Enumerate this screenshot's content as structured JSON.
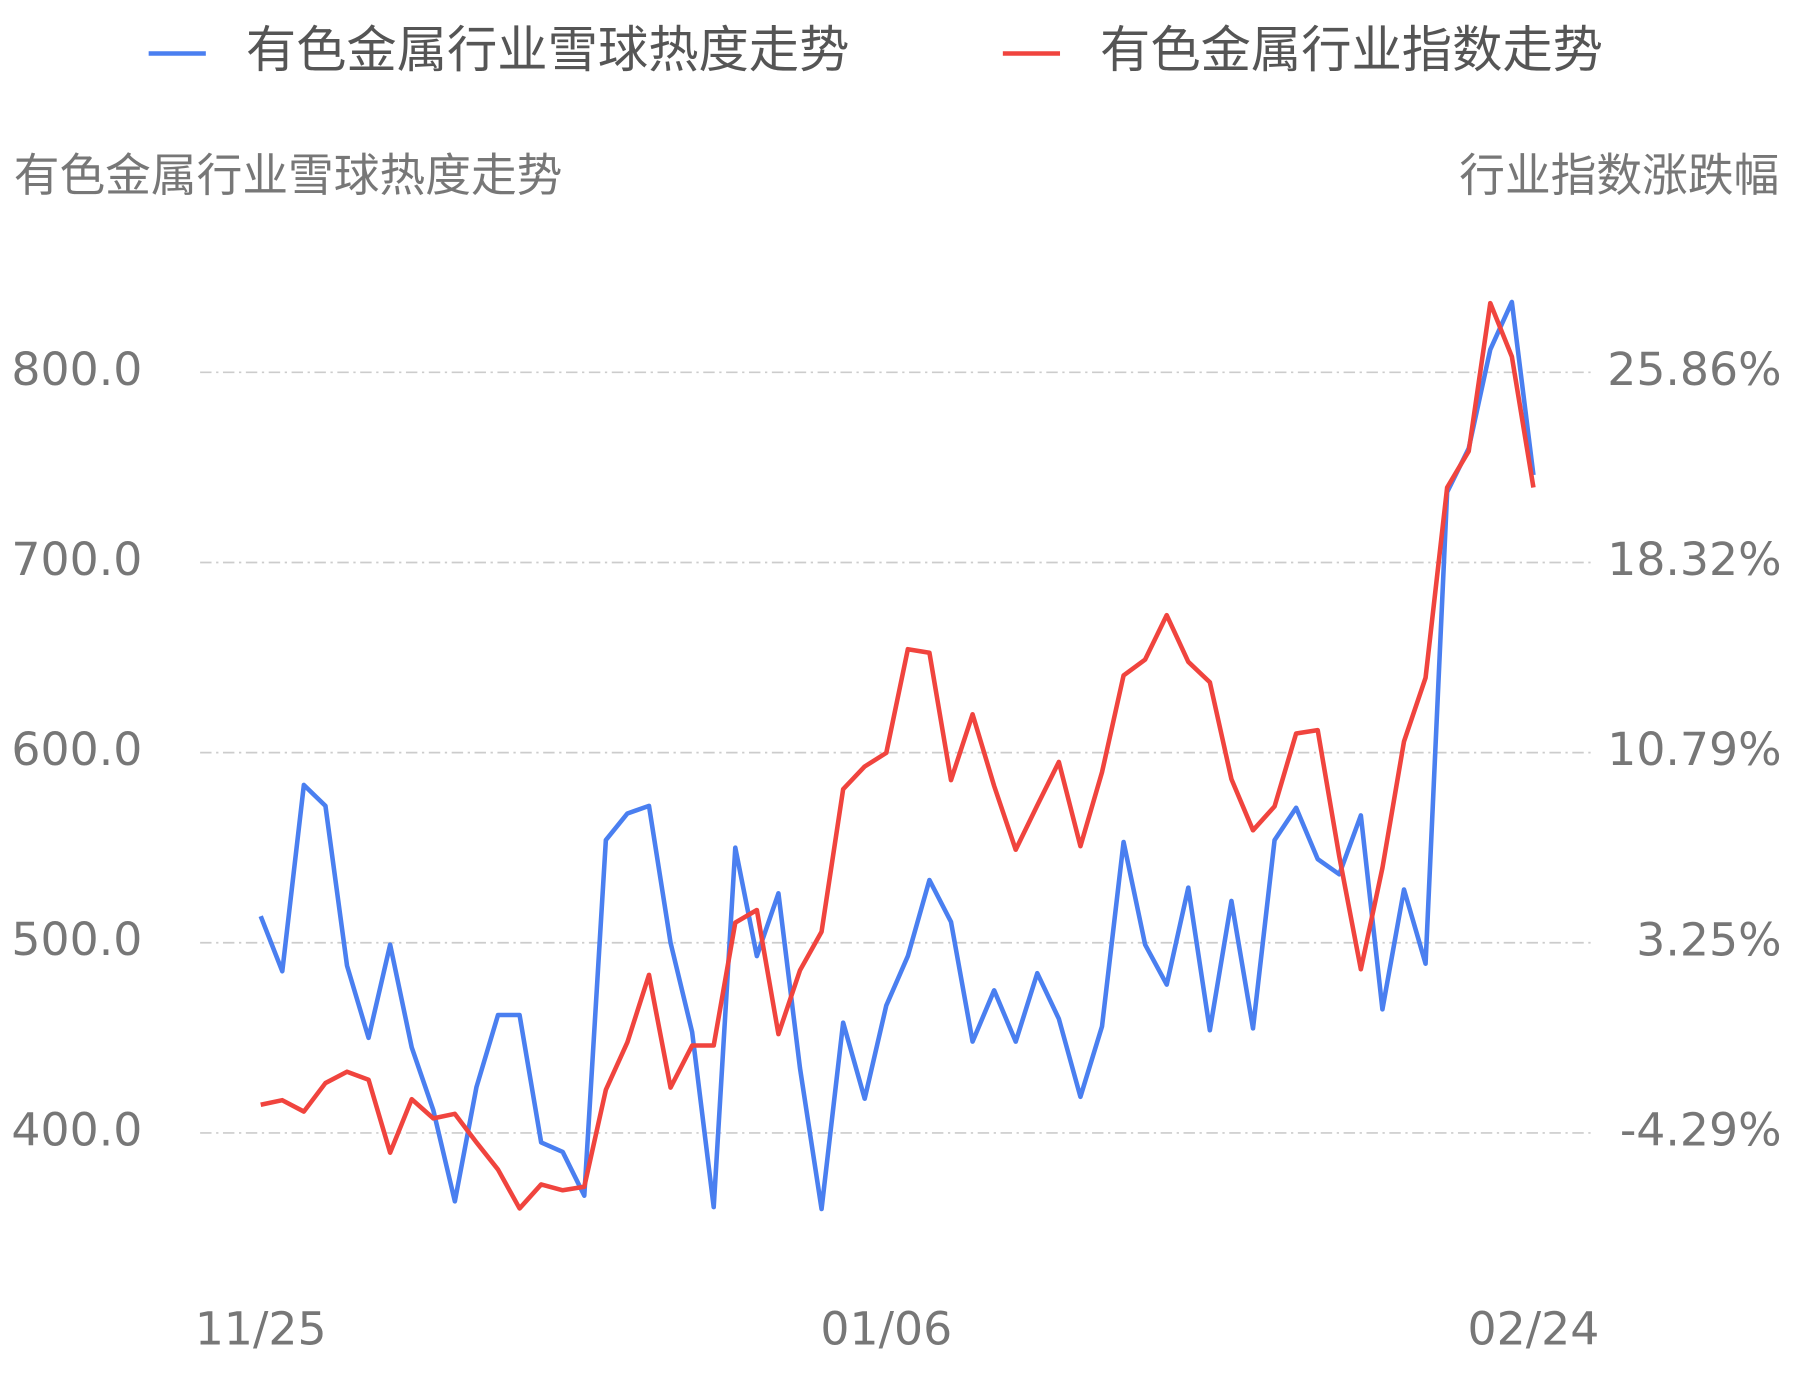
{
  "chart_data": {
    "type": "line",
    "y_label": "有色金属行业雪球热度走势",
    "y2_label": "行业指数涨跌幅",
    "categories": [
      "11/25",
      null,
      null,
      null,
      null,
      null,
      null,
      null,
      null,
      null,
      null,
      null,
      null,
      null,
      null,
      null,
      null,
      null,
      null,
      null,
      null,
      null,
      null,
      null,
      null,
      null,
      null,
      null,
      null,
      "01/06",
      null,
      null,
      null,
      null,
      null,
      null,
      null,
      null,
      null,
      null,
      null,
      null,
      null,
      null,
      null,
      null,
      null,
      null,
      null,
      null,
      null,
      null,
      null,
      null,
      null,
      null,
      null,
      null,
      null,
      "02/24"
    ],
    "series": [
      {
        "name": "有色金属行业雪球热度走势",
        "color": "#4a7ff0",
        "values": [
          514,
          485,
          583,
          572,
          488,
          450,
          499,
          445,
          412,
          364,
          424,
          462,
          462,
          395,
          390,
          367,
          554,
          568,
          572,
          500,
          453,
          361,
          550,
          493,
          526,
          434,
          360,
          458,
          418,
          467,
          493,
          533,
          511,
          448,
          475,
          448,
          484,
          460,
          419,
          456,
          553,
          499,
          478,
          529,
          454,
          522,
          455,
          554,
          571,
          544,
          536,
          567,
          465,
          528,
          489,
          737,
          760,
          812,
          837,
          746
        ]
      },
      {
        "name": "有色金属行业指数走势",
        "color": "#f0443e",
        "axis": "y2",
        "values": [
          -3.17,
          -2.99,
          -3.44,
          -2.31,
          -1.86,
          -2.18,
          -5.07,
          -2.95,
          -3.71,
          -3.53,
          -4.66,
          -5.74,
          -7.28,
          -6.33,
          -6.56,
          -6.42,
          -2.58,
          -0.69,
          1.98,
          -2.49,
          -0.82,
          -0.82,
          4.05,
          4.55,
          -0.37,
          2.16,
          3.69,
          9.34,
          10.24,
          10.78,
          14.89,
          14.75,
          9.7,
          12.31,
          9.47,
          6.94,
          8.7,
          10.42,
          7.08,
          10.01,
          13.85,
          14.48,
          16.24,
          14.39,
          13.58,
          9.74,
          7.71,
          8.66,
          11.55,
          11.68,
          6.67,
          2.2,
          6.22,
          11.23,
          13.76,
          21.3,
          22.74,
          28.61,
          26.49,
          21.3
        ]
      }
    ],
    "ylim": [
      340,
      860
    ],
    "yticks": [
      {
        "value": 400,
        "label": "400.0"
      },
      {
        "value": 500,
        "label": "500.0"
      },
      {
        "value": 600,
        "label": "600.0"
      },
      {
        "value": 700,
        "label": "700.0"
      },
      {
        "value": 800,
        "label": "800.0"
      }
    ],
    "y2lim": [
      -8.81,
      30.39
    ],
    "y2ticks": [
      {
        "value": -4.29,
        "label": "-4.29%"
      },
      {
        "value": 3.25,
        "label": "3.25%"
      },
      {
        "value": 10.79,
        "label": "10.79%"
      },
      {
        "value": 18.32,
        "label": "18.32%"
      },
      {
        "value": 25.86,
        "label": "25.86%"
      }
    ],
    "grid": true
  }
}
